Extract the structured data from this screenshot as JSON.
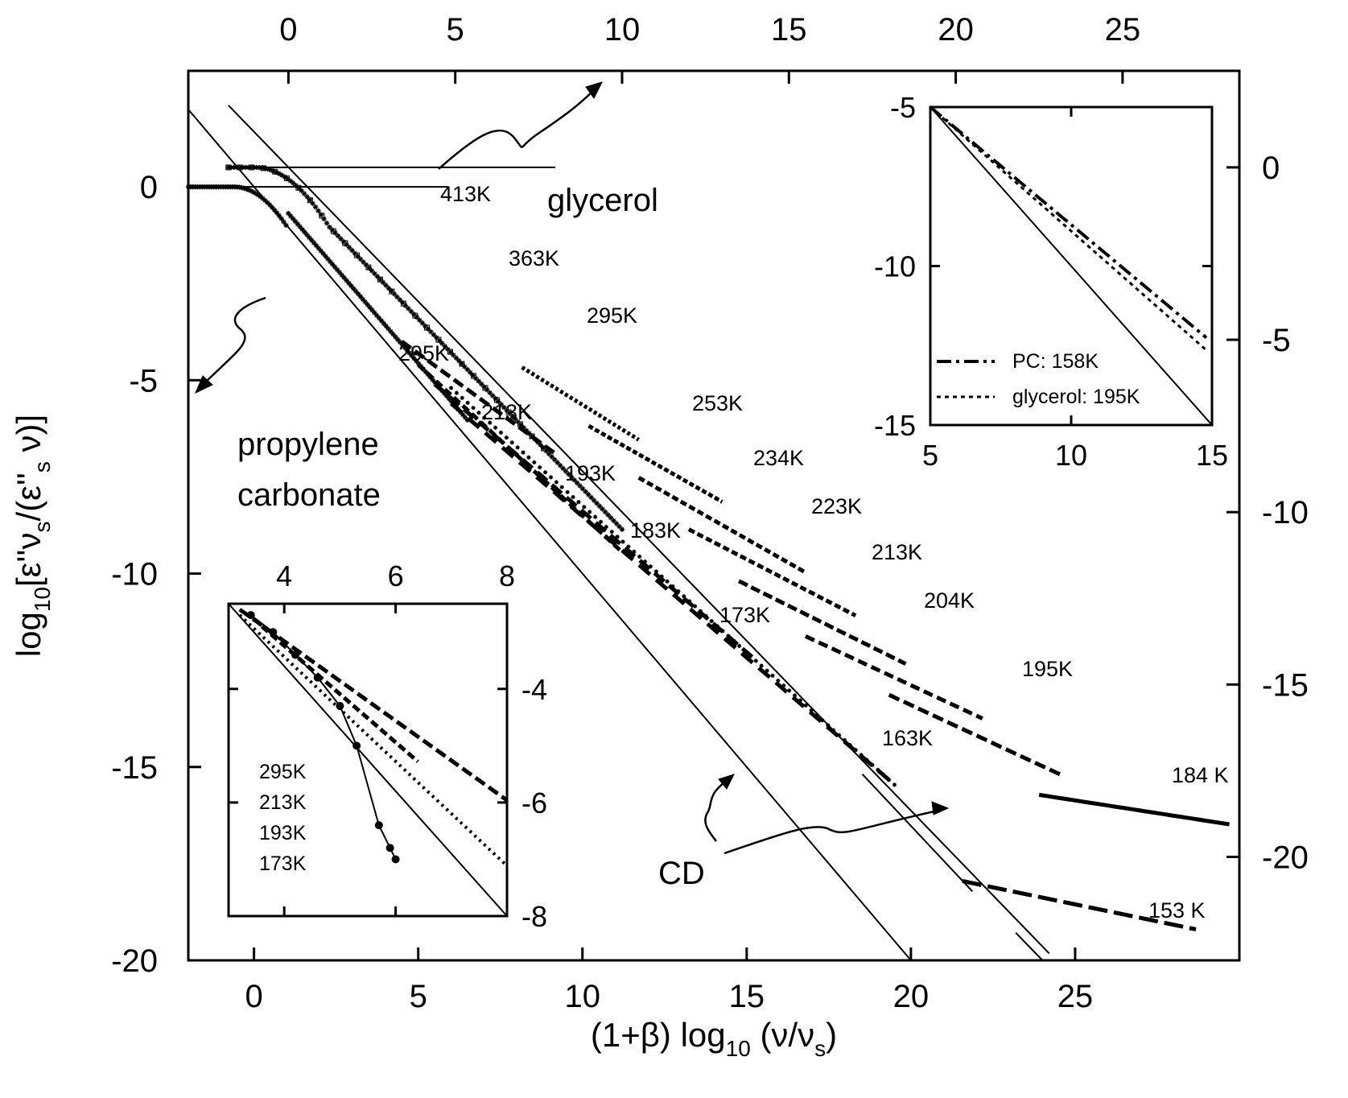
{
  "chart_data": {
    "type": "scatter",
    "main": {
      "x_bottom": {
        "range": [
          -2,
          30
        ],
        "ticks": [
          0,
          5,
          10,
          15,
          20,
          25
        ]
      },
      "y_left": {
        "range": [
          -20,
          3
        ],
        "ticks": [
          0,
          -5,
          -10,
          -15,
          -20
        ]
      },
      "x_top": {
        "range": [
          -3,
          28.5
        ],
        "ticks": [
          0,
          5,
          10,
          15,
          20,
          25
        ]
      },
      "y_right": {
        "range": [
          -23,
          2.8
        ],
        "ticks": [
          0,
          -5,
          -10,
          -15,
          -20
        ]
      },
      "xlabel_parts": [
        "(1+β) log",
        "10",
        " (ν/ν",
        "s",
        ")"
      ],
      "ylabel_parts": [
        "log",
        "10",
        "[ε''ν",
        "s",
        "/(ε''",
        "s",
        " ν)]"
      ]
    },
    "labels": {
      "glycerol": "glycerol",
      "pc_line1": "propylene",
      "pc_line2": "carbonate",
      "cd": "CD"
    },
    "glycerol_temps": [
      "413K",
      "363K",
      "295K",
      "253K",
      "234K",
      "223K",
      "213K",
      "204K",
      "195K",
      "184 K",
      "153 K",
      "163K"
    ],
    "pc_temps": [
      "295K",
      "213K",
      "193K",
      "183K",
      "173K"
    ],
    "series": [
      {
        "group": "PC",
        "T": "295K",
        "end_x": 6.5,
        "end_y": -4.3
      },
      {
        "group": "PC",
        "T": "213K",
        "end_x": 9.0,
        "end_y": -6.8
      },
      {
        "group": "PC",
        "T": "193K",
        "end_x": 11.0,
        "end_y": -9.3
      },
      {
        "group": "PC",
        "T": "183K",
        "end_x": 15.0,
        "end_y": -12.2
      },
      {
        "group": "PC",
        "T": "173K",
        "end_x": 19.6,
        "end_y": -15.5
      },
      {
        "group": "glycerol",
        "T": "295K",
        "end_x": 11.0,
        "end_y": -7.5
      },
      {
        "group": "glycerol",
        "T": "253K",
        "end_x": 13.0,
        "end_y": -9.6
      },
      {
        "group": "glycerol",
        "T": "234K",
        "end_x": 15.5,
        "end_y": -11.8
      },
      {
        "group": "glycerol",
        "T": "223K",
        "end_x": 17.0,
        "end_y": -13.0
      },
      {
        "group": "glycerol",
        "T": "213K",
        "end_x": 18.5,
        "end_y": -14.2
      },
      {
        "group": "glycerol",
        "T": "204K",
        "end_x": 20.5,
        "end_y": -15.6
      },
      {
        "group": "glycerol",
        "T": "195K",
        "end_x": 23.0,
        "end_y": -16.8
      },
      {
        "group": "glycerol",
        "T": "184 K",
        "end_x": 28.5,
        "end_y": -19.0
      },
      {
        "group": "glycerol",
        "T": "153 K",
        "end_x": 27.5,
        "end_y": -22.8
      }
    ],
    "cd_lines": [
      {
        "group": "PC",
        "slope": -1,
        "plateau": 0
      },
      {
        "group": "glycerol",
        "slope": -1,
        "plateau": 0
      }
    ],
    "inset_pc": {
      "x": {
        "range": [
          3,
          8
        ],
        "ticks": [
          4,
          6,
          8
        ]
      },
      "y": {
        "range": [
          -8,
          -2.5
        ],
        "ticks": [
          -4,
          -6,
          -8
        ]
      },
      "legend": [
        "295K",
        "213K",
        "193K",
        "173K"
      ]
    },
    "inset_glycerol": {
      "x": {
        "range": [
          5,
          15
        ],
        "ticks": [
          5,
          10,
          15
        ]
      },
      "y": {
        "range": [
          -15,
          -5
        ],
        "ticks": [
          -5,
          -10,
          -15
        ]
      },
      "legend": [
        "PC: 158K",
        "glycerol: 195K"
      ]
    }
  }
}
